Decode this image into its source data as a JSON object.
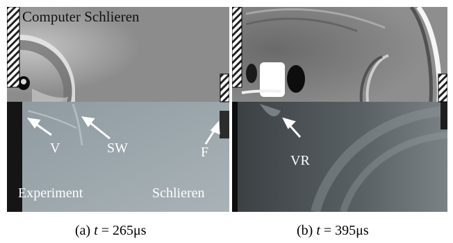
{
  "panel_a": {
    "top_label": "Computer Schlieren",
    "arrow_labels": {
      "v": "V",
      "sw": "SW",
      "f": "F"
    },
    "bottom_left_label": "Experiment",
    "bottom_right_label": "Schlieren"
  },
  "panel_b": {
    "arrow_labels": {
      "vr": "VR"
    }
  },
  "captions": {
    "a": {
      "prefix": "(a) ",
      "var": "t",
      "value": " = 265μs"
    },
    "b": {
      "prefix": "(b) ",
      "var": "t",
      "value": " = 395μs"
    }
  }
}
